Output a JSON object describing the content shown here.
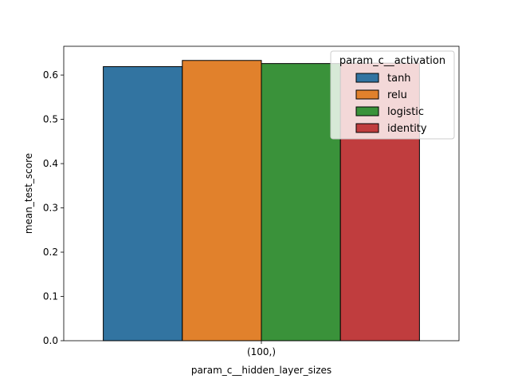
{
  "chart_data": {
    "type": "bar",
    "categories": [
      "(100,)"
    ],
    "series": [
      {
        "name": "tanh",
        "values": [
          0.619
        ],
        "color": "#3274a1"
      },
      {
        "name": "relu",
        "values": [
          0.633
        ],
        "color": "#e1812c"
      },
      {
        "name": "logistic",
        "values": [
          0.626
        ],
        "color": "#3a923a"
      },
      {
        "name": "identity",
        "values": [
          0.627
        ],
        "color": "#c03d3e"
      }
    ],
    "xlabel": "param_c__hidden_layer_sizes",
    "ylabel": "mean_test_score",
    "ylim": [
      0,
      0.665
    ],
    "yticks": [
      0.0,
      0.1,
      0.2,
      0.3,
      0.4,
      0.5,
      0.6
    ],
    "ytick_labels": [
      "0.0",
      "0.1",
      "0.2",
      "0.3",
      "0.4",
      "0.5",
      "0.6"
    ],
    "legend": {
      "title": "param_c__activation",
      "position": "top-right",
      "entries": [
        "tanh",
        "relu",
        "logistic",
        "identity"
      ]
    },
    "grid": false
  }
}
